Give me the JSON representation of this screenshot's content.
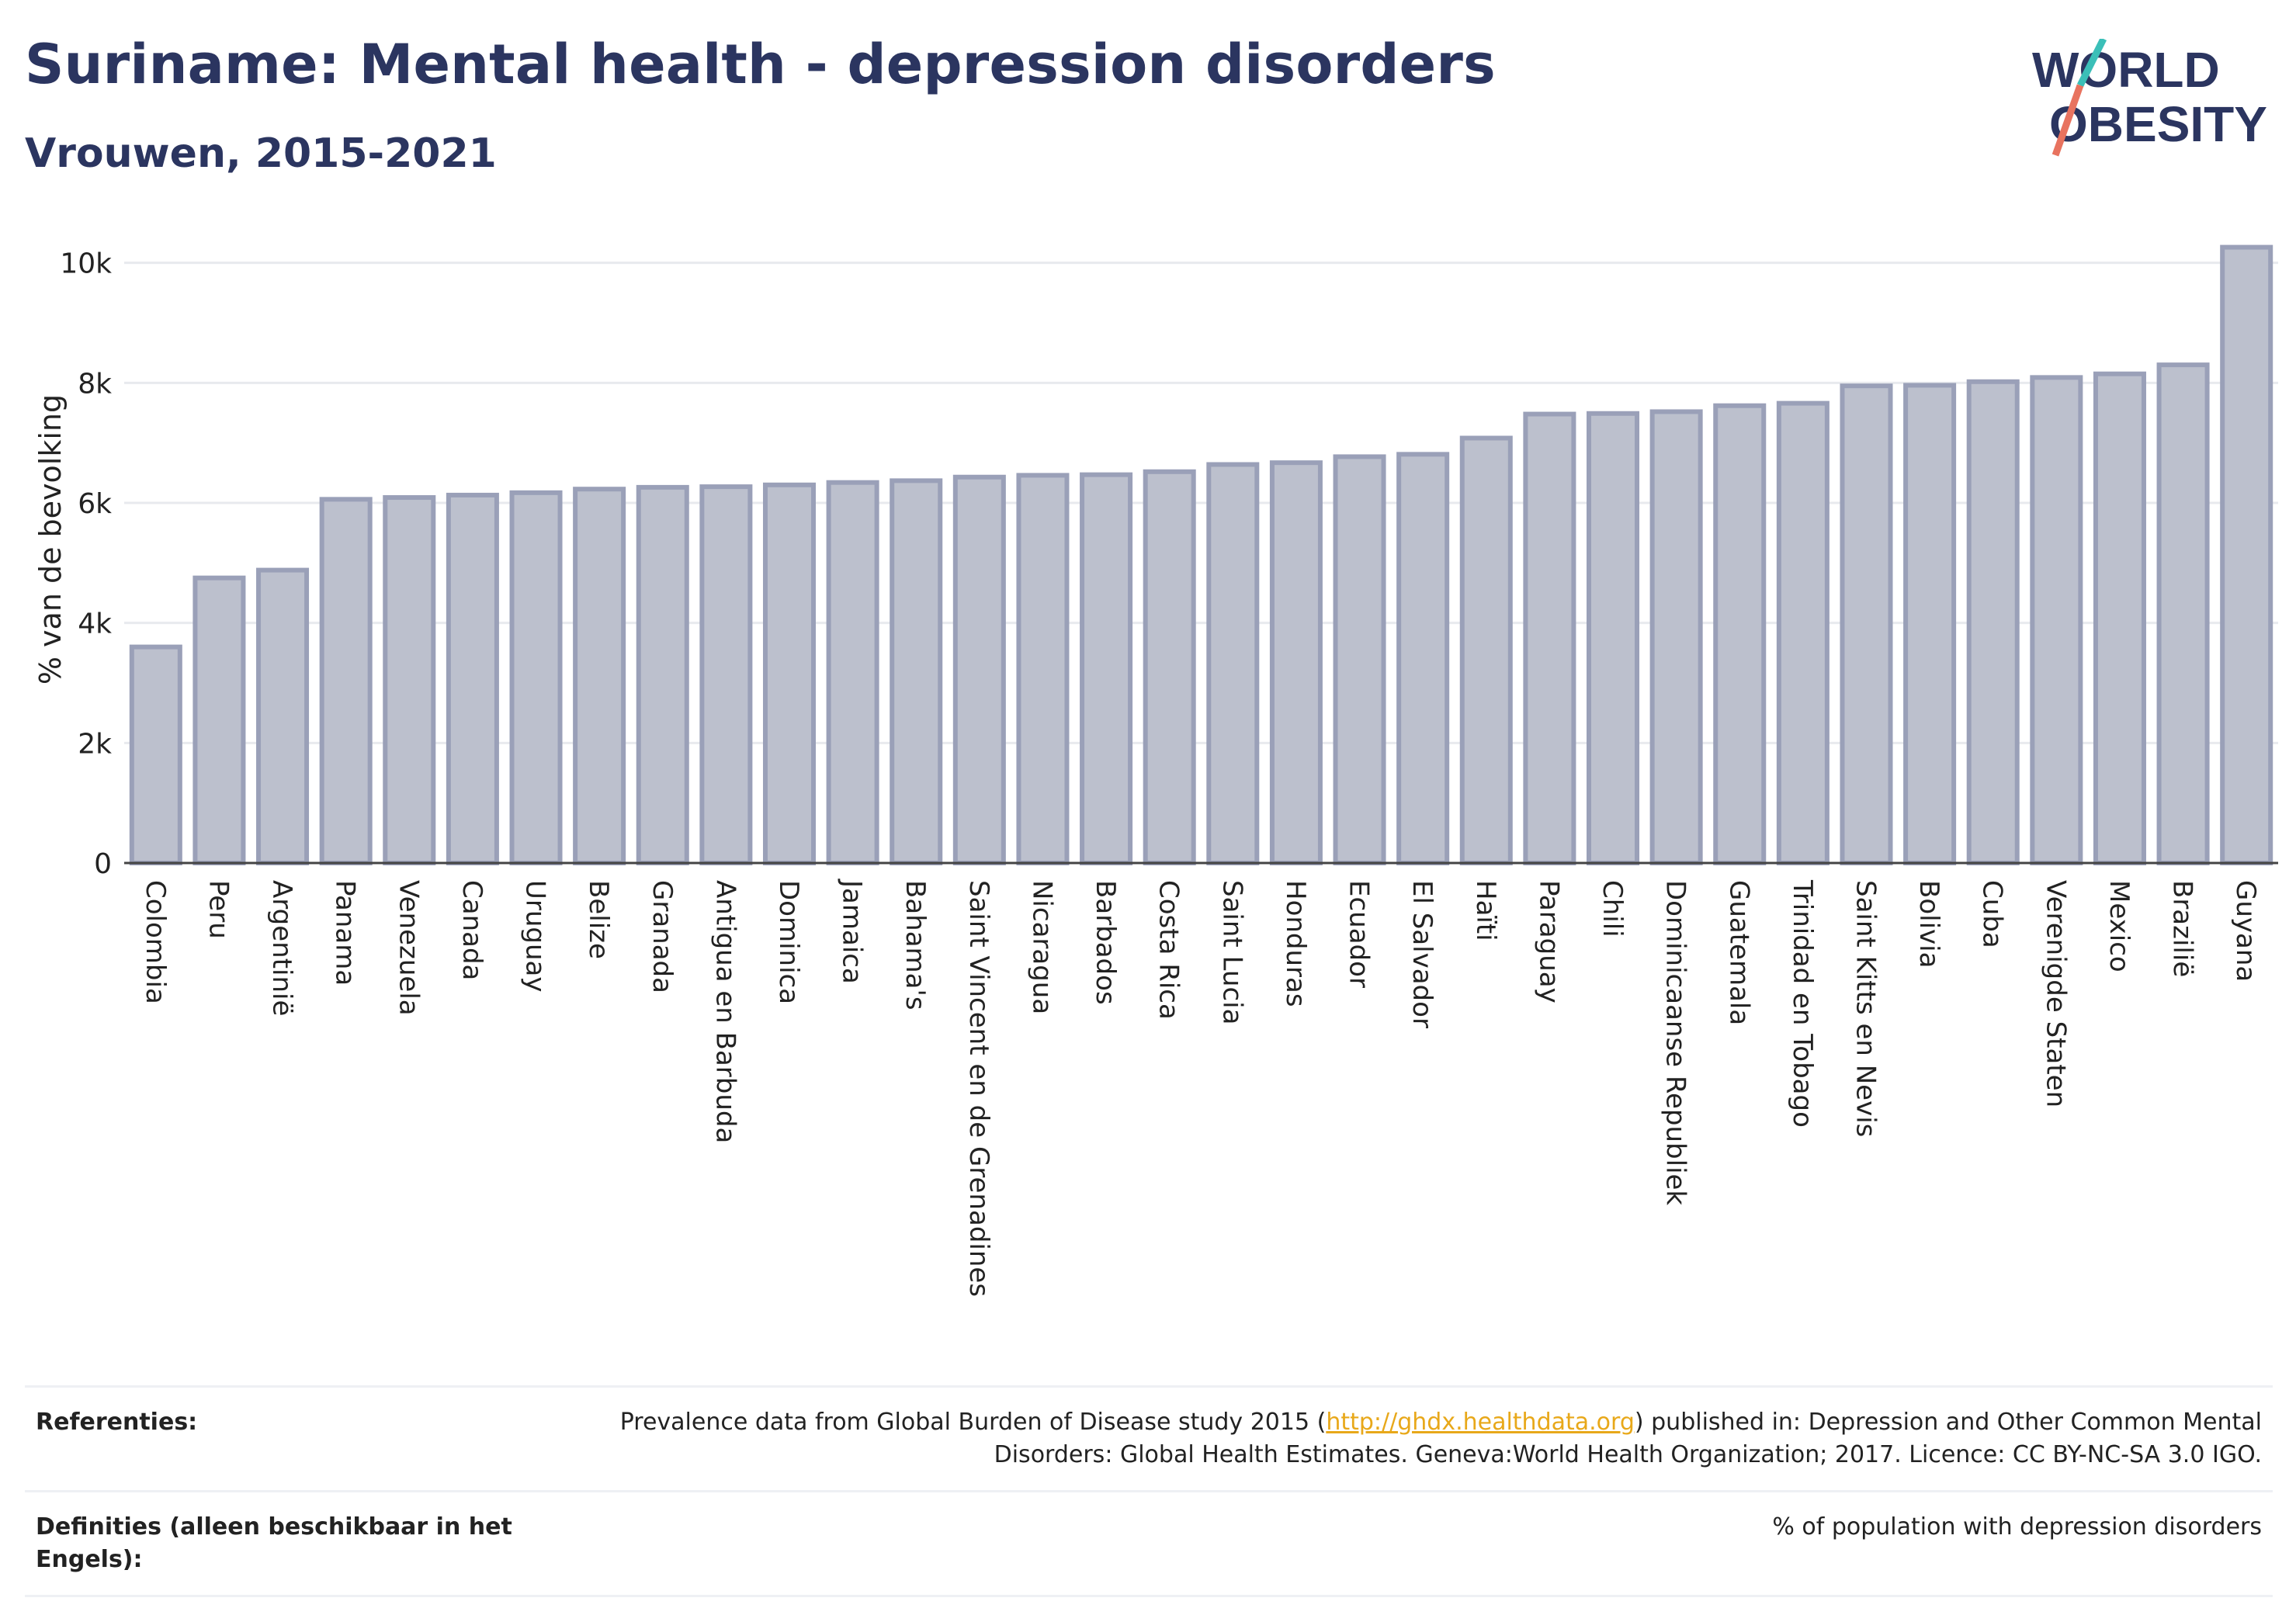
{
  "title": "Suriname: Mental health - depression disorders",
  "subtitle": "Vrouwen, 2015-2021",
  "logo": {
    "line1": "WORLD",
    "line2": "OBESITY",
    "accent_colors": [
      "#e8735f",
      "#3bbfb8"
    ]
  },
  "colors": {
    "bar_fill": "#bcc0cd",
    "bar_stroke": "#9aa0b8",
    "title": "#2b3560",
    "link": "#e8a81a"
  },
  "chart_data": {
    "type": "bar",
    "ylabel": "% van de bevolking",
    "ylim": [
      0,
      10500
    ],
    "yticks": [
      0,
      2000,
      4000,
      6000,
      8000,
      10000
    ],
    "ytick_labels": [
      "0",
      "2k",
      "4k",
      "6k",
      "8k",
      "10k"
    ],
    "grid": true,
    "categories": [
      "Colombia",
      "Peru",
      "Argentinië",
      "Panama",
      "Venezuela",
      "Canada",
      "Uruguay",
      "Belize",
      "Granada",
      "Antigua en Barbuda",
      "Dominica",
      "Jamaica",
      "Bahama's",
      "Saint Vincent en de Grenadines",
      "Nicaragua",
      "Barbados",
      "Costa Rica",
      "Saint Lucia",
      "Honduras",
      "Ecuador",
      "El Salvador",
      "Haïti",
      "Paraguay",
      "Chili",
      "Dominicaanse Republiek",
      "Guatemala",
      "Trinidad en Tobago",
      "Saint Kitts en Nevis",
      "Bolivia",
      "Cuba",
      "Verenigde Staten",
      "Mexico",
      "Brazilië",
      "Guyana"
    ],
    "values": [
      3600,
      4750,
      4880,
      6060,
      6090,
      6130,
      6170,
      6230,
      6260,
      6270,
      6300,
      6340,
      6370,
      6430,
      6460,
      6470,
      6520,
      6640,
      6670,
      6770,
      6810,
      7080,
      7480,
      7490,
      7520,
      7620,
      7660,
      7950,
      7960,
      8020,
      8090,
      8150,
      8300,
      10260
    ]
  },
  "references": {
    "label": "Referenties:",
    "text_before": "Prevalence data from Global Burden of Disease study 2015 (",
    "link": "http://ghdx.healthdata.org",
    "text_after": ") published in: Depression and Other Common Mental Disorders: Global Health Estimates. Geneva:World Health Organization; 2017. Licence: CC BY-NC-SA 3.0 IGO."
  },
  "definitions": {
    "label": "Definities (alleen beschikbaar in het Engels):",
    "text": "% of population with depression disorders"
  }
}
